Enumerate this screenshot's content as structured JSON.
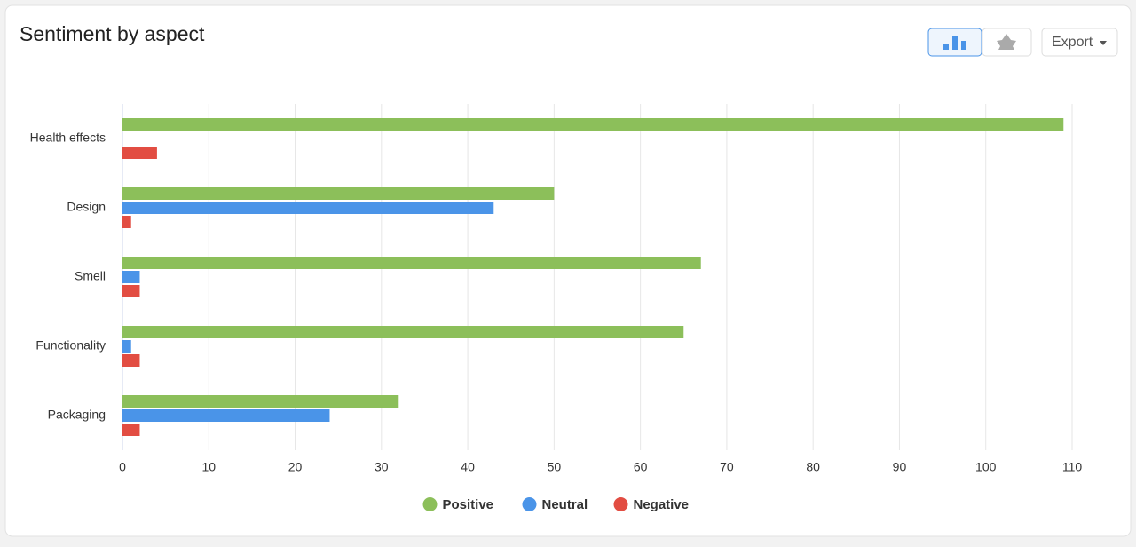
{
  "chart_data": {
    "type": "bar",
    "orientation": "horizontal",
    "title": "Sentiment by aspect",
    "export_label": "Export",
    "categories": [
      "Health effects",
      "Design",
      "Smell",
      "Functionality",
      "Packaging"
    ],
    "series": [
      {
        "name": "Positive",
        "color": "#8cbf5a",
        "values": [
          109,
          50,
          67,
          65,
          32
        ]
      },
      {
        "name": "Neutral",
        "color": "#4a94e8",
        "values": [
          0,
          43,
          2,
          1,
          24
        ]
      },
      {
        "name": "Negative",
        "color": "#e24d42",
        "values": [
          4,
          1,
          2,
          2,
          2
        ]
      }
    ],
    "xlim": [
      0,
      110
    ],
    "xticks": [
      0,
      10,
      20,
      30,
      40,
      50,
      60,
      70,
      80,
      90,
      100,
      110
    ],
    "grid": true
  }
}
